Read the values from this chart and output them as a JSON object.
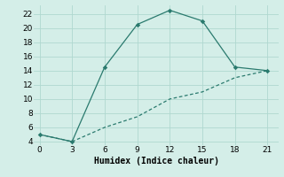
{
  "line1_x": [
    0,
    3,
    6,
    9,
    12,
    15,
    18,
    21
  ],
  "line1_y": [
    5,
    4,
    14.5,
    20.5,
    22.5,
    21,
    14.5,
    14
  ],
  "line2_x": [
    0,
    3,
    6,
    9,
    12,
    15,
    18,
    21
  ],
  "line2_y": [
    5,
    4,
    6,
    7.5,
    10,
    11,
    13,
    14
  ],
  "line_color": "#2a7a6e",
  "bg_color": "#d4eee8",
  "grid_color": "#b0d8d0",
  "xlabel": "Humidex (Indice chaleur)",
  "xlim": [
    -0.5,
    22
  ],
  "ylim": [
    3.5,
    23.2
  ],
  "xticks": [
    0,
    3,
    6,
    9,
    12,
    15,
    18,
    21
  ],
  "yticks": [
    4,
    6,
    8,
    10,
    12,
    14,
    16,
    18,
    20,
    22
  ],
  "label_fontsize": 7.0,
  "tick_fontsize": 6.5
}
